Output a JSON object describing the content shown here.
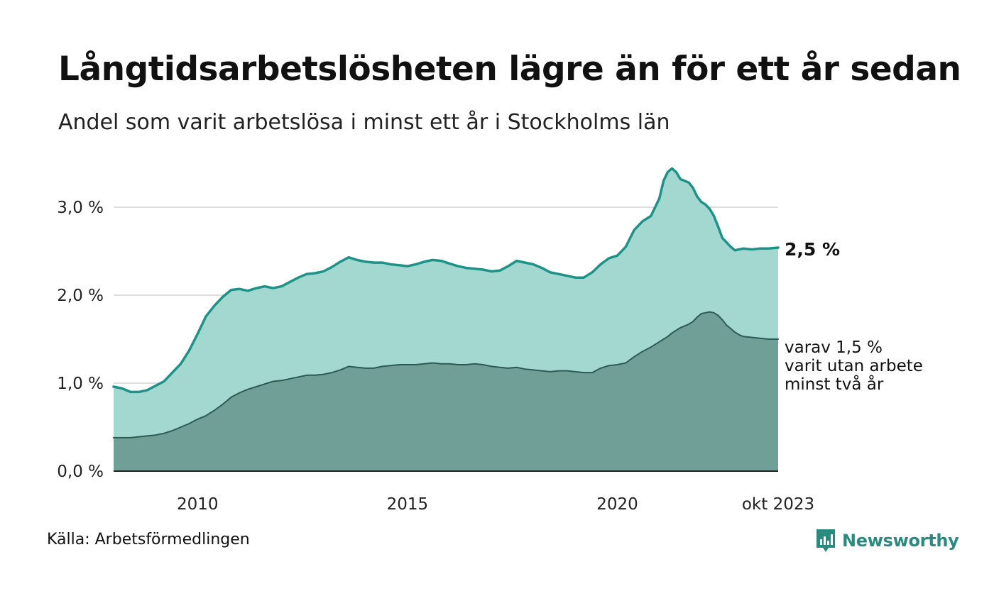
{
  "header": {
    "title": "Långtidsarbetslösheten lägre än för ett år sedan",
    "subtitle": "Andel som varit arbetslösa i minst ett år i Stockholms län"
  },
  "footer": {
    "source": "Källa: Arbetsförmedlingen",
    "brand": "Newsworthy"
  },
  "colors": {
    "total_area": "#a3d8d1",
    "total_line": "#1e9286",
    "sub_area": "#6f9f97",
    "sub_line": "#2d5b55",
    "grid": "#dddddd",
    "brand": "#2a8a80"
  },
  "chart_data": {
    "type": "area",
    "title": "Långtidsarbetslösheten lägre än för ett år sedan",
    "xlabel": "",
    "ylabel": "",
    "xlim": [
      2008.0,
      2023.83
    ],
    "ylim": [
      0,
      3.5
    ],
    "y_ticks": [
      0,
      1,
      2,
      3
    ],
    "y_tick_labels": [
      "0,0 %",
      "1,0 %",
      "2,0 %",
      "3,0 %"
    ],
    "x_ticks": [
      2010,
      2015,
      2020,
      2023.83
    ],
    "x_tick_labels": [
      "2010",
      "2015",
      "2020",
      "okt 2023"
    ],
    "grid": true,
    "end_labels": {
      "total": "2,5 %",
      "sub": [
        "varav 1,5 %",
        "varit utan arbete",
        "minst två år"
      ]
    },
    "series": [
      {
        "name": "Arbetslösa minst ett år",
        "x": [
          2008.0,
          2008.2,
          2008.4,
          2008.6,
          2008.8,
          2009.0,
          2009.2,
          2009.4,
          2009.6,
          2009.8,
          2010.0,
          2010.2,
          2010.4,
          2010.6,
          2010.8,
          2011.0,
          2011.2,
          2011.4,
          2011.6,
          2011.8,
          2012.0,
          2012.2,
          2012.4,
          2012.6,
          2012.8,
          2013.0,
          2013.2,
          2013.4,
          2013.6,
          2013.8,
          2014.0,
          2014.2,
          2014.4,
          2014.6,
          2014.8,
          2015.0,
          2015.2,
          2015.4,
          2015.6,
          2015.8,
          2016.0,
          2016.2,
          2016.4,
          2016.6,
          2016.8,
          2017.0,
          2017.2,
          2017.4,
          2017.6,
          2017.8,
          2018.0,
          2018.2,
          2018.4,
          2018.6,
          2018.8,
          2019.0,
          2019.2,
          2019.4,
          2019.6,
          2019.8,
          2020.0,
          2020.2,
          2020.4,
          2020.6,
          2020.8,
          2021.0,
          2021.1,
          2021.2,
          2021.3,
          2021.4,
          2021.5,
          2021.6,
          2021.7,
          2021.8,
          2021.9,
          2022.0,
          2022.1,
          2022.2,
          2022.3,
          2022.4,
          2022.5,
          2022.6,
          2022.7,
          2022.8,
          2022.9,
          2023.0,
          2023.2,
          2023.4,
          2023.6,
          2023.83
        ],
        "values": [
          0.96,
          0.94,
          0.9,
          0.9,
          0.92,
          0.97,
          1.02,
          1.12,
          1.22,
          1.37,
          1.56,
          1.76,
          1.88,
          1.98,
          2.06,
          2.07,
          2.05,
          2.08,
          2.1,
          2.08,
          2.1,
          2.15,
          2.2,
          2.24,
          2.25,
          2.27,
          2.32,
          2.38,
          2.43,
          2.4,
          2.38,
          2.37,
          2.37,
          2.35,
          2.34,
          2.33,
          2.35,
          2.38,
          2.4,
          2.39,
          2.36,
          2.33,
          2.31,
          2.3,
          2.29,
          2.27,
          2.28,
          2.33,
          2.39,
          2.37,
          2.35,
          2.31,
          2.26,
          2.24,
          2.22,
          2.2,
          2.2,
          2.26,
          2.35,
          2.42,
          2.45,
          2.55,
          2.74,
          2.84,
          2.9,
          3.1,
          3.3,
          3.4,
          3.44,
          3.4,
          3.32,
          3.3,
          3.28,
          3.22,
          3.12,
          3.06,
          3.03,
          2.98,
          2.9,
          2.78,
          2.65,
          2.6,
          2.55,
          2.51,
          2.52,
          2.53,
          2.52,
          2.53,
          2.53,
          2.54
        ]
      },
      {
        "name": "varav minst två år utan arbete",
        "x": [
          2008.0,
          2008.2,
          2008.4,
          2008.6,
          2008.8,
          2009.0,
          2009.2,
          2009.4,
          2009.6,
          2009.8,
          2010.0,
          2010.2,
          2010.4,
          2010.6,
          2010.8,
          2011.0,
          2011.2,
          2011.4,
          2011.6,
          2011.8,
          2012.0,
          2012.2,
          2012.4,
          2012.6,
          2012.8,
          2013.0,
          2013.2,
          2013.4,
          2013.6,
          2013.8,
          2014.0,
          2014.2,
          2014.4,
          2014.6,
          2014.8,
          2015.0,
          2015.2,
          2015.4,
          2015.6,
          2015.8,
          2016.0,
          2016.2,
          2016.4,
          2016.6,
          2016.8,
          2017.0,
          2017.2,
          2017.4,
          2017.6,
          2017.8,
          2018.0,
          2018.2,
          2018.4,
          2018.6,
          2018.8,
          2019.0,
          2019.2,
          2019.4,
          2019.6,
          2019.8,
          2020.0,
          2020.2,
          2020.4,
          2020.6,
          2020.8,
          2021.0,
          2021.1,
          2021.2,
          2021.3,
          2021.4,
          2021.5,
          2021.6,
          2021.7,
          2021.8,
          2021.9,
          2022.0,
          2022.1,
          2022.2,
          2022.3,
          2022.4,
          2022.5,
          2022.6,
          2022.7,
          2022.8,
          2022.9,
          2023.0,
          2023.2,
          2023.4,
          2023.6,
          2023.83
        ],
        "values": [
          0.38,
          0.38,
          0.38,
          0.39,
          0.4,
          0.41,
          0.43,
          0.46,
          0.5,
          0.54,
          0.59,
          0.63,
          0.69,
          0.76,
          0.84,
          0.89,
          0.93,
          0.96,
          0.99,
          1.02,
          1.03,
          1.05,
          1.07,
          1.09,
          1.09,
          1.1,
          1.12,
          1.15,
          1.19,
          1.18,
          1.17,
          1.17,
          1.19,
          1.2,
          1.21,
          1.21,
          1.21,
          1.22,
          1.23,
          1.22,
          1.22,
          1.21,
          1.21,
          1.22,
          1.21,
          1.19,
          1.18,
          1.17,
          1.18,
          1.16,
          1.15,
          1.14,
          1.13,
          1.14,
          1.14,
          1.13,
          1.12,
          1.12,
          1.17,
          1.2,
          1.21,
          1.23,
          1.3,
          1.36,
          1.41,
          1.47,
          1.5,
          1.53,
          1.57,
          1.6,
          1.63,
          1.65,
          1.67,
          1.7,
          1.75,
          1.79,
          1.8,
          1.81,
          1.8,
          1.77,
          1.72,
          1.66,
          1.62,
          1.58,
          1.55,
          1.53,
          1.52,
          1.51,
          1.5,
          1.5
        ]
      }
    ]
  }
}
